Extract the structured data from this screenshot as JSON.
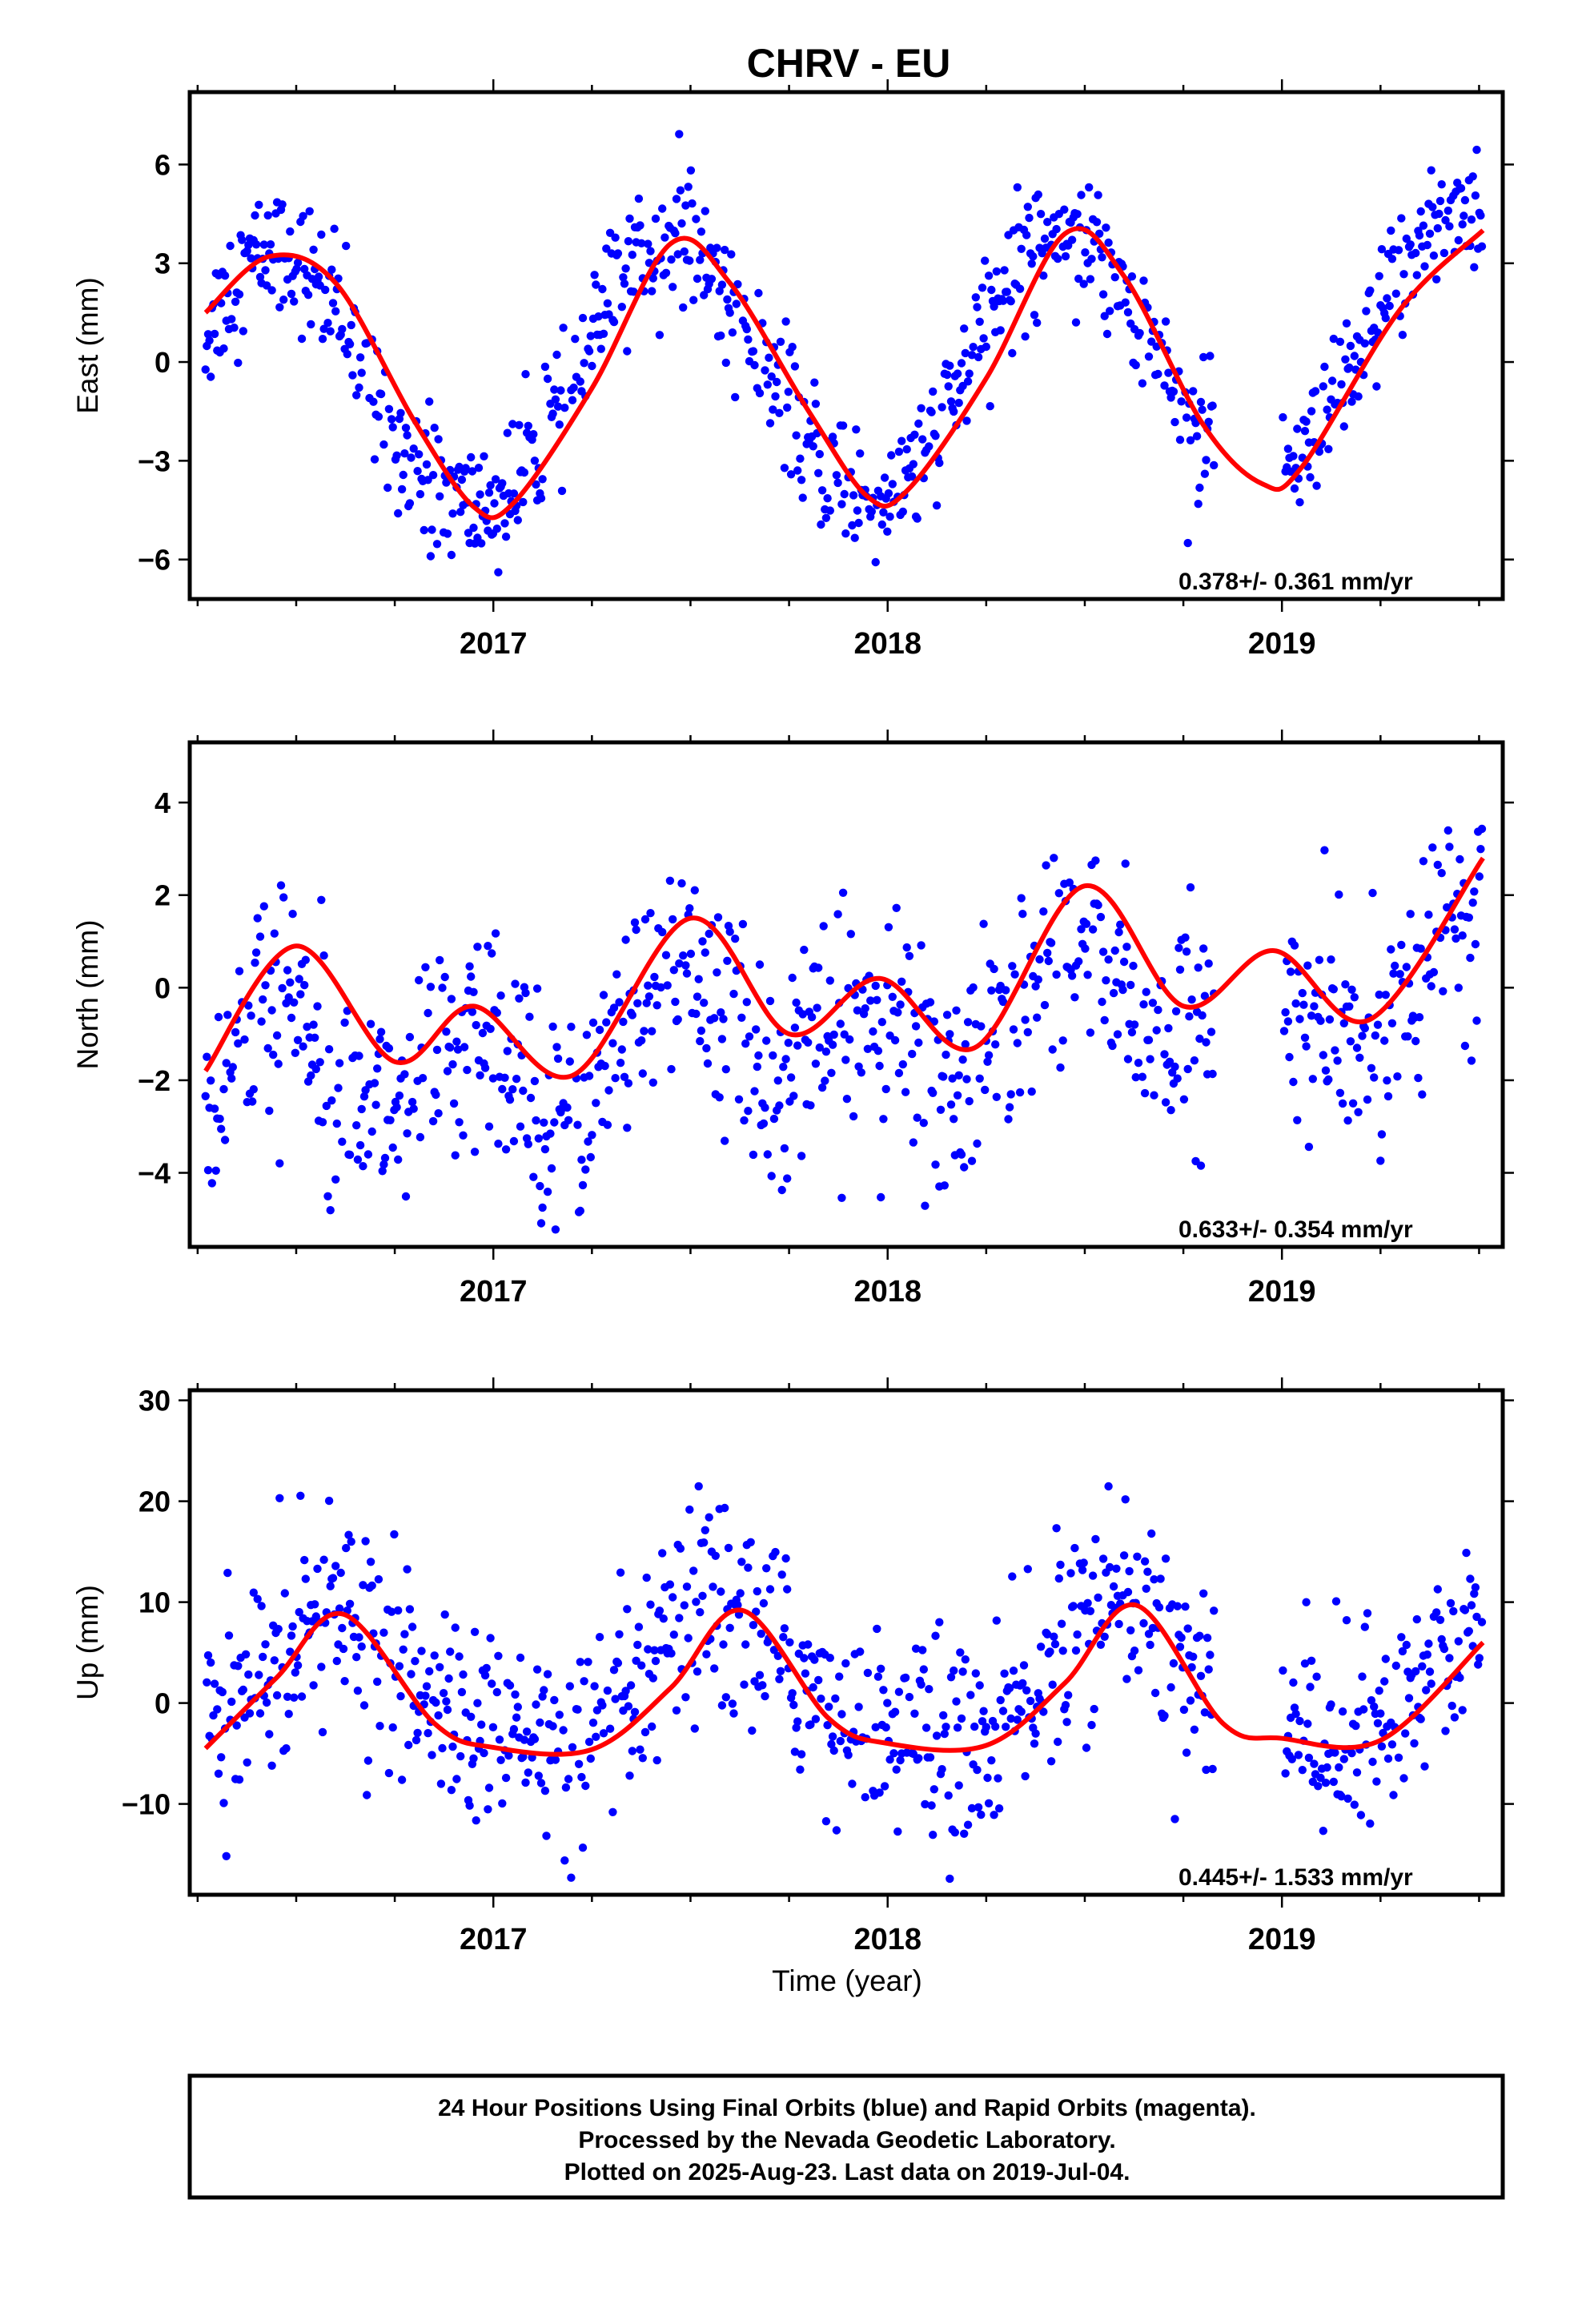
{
  "title": "CHRV - EU",
  "colors": {
    "final_orbits": "#0000ff",
    "fit": "#ff0000"
  },
  "xlabel": "Time (year)",
  "footer_lines": [
    "24 Hour Positions Using Final Orbits (blue) and Rapid Orbits (magenta).",
    "Processed by the Nevada Geodetic Laboratory.",
    "Plotted on 2025-Aug-23. Last data on 2019-Jul-04."
  ],
  "chart_data": [
    {
      "type": "scatter",
      "ylabel": "East (mm)",
      "xlim": [
        2016.23,
        2019.56
      ],
      "ylim": [
        -7.2,
        8.2
      ],
      "x_ticks": [
        2017,
        2018,
        2019
      ],
      "y_ticks": [
        -6,
        -3,
        0,
        3,
        6
      ],
      "y_tick_labels": [
        "−6",
        "−3",
        "0",
        "3",
        "6"
      ],
      "rate_label": "0.378+/- 0.361 mm/yr",
      "data_range": [
        2016.27,
        2019.51
      ],
      "gap": [
        2018.83,
        2019.0
      ],
      "model": {
        "offset": -0.2,
        "rate": 0.378,
        "annual": 4.0,
        "annual_peak": 2017.45,
        "semiannual": 0.2,
        "semi_phase": 0.5,
        "noise": 1.0
      },
      "fit_points": [
        [
          2016.27,
          1.5
        ],
        [
          2016.43,
          3.2
        ],
        [
          2016.6,
          2.4
        ],
        [
          2016.8,
          -1.8
        ],
        [
          2016.95,
          -4.4
        ],
        [
          2017.05,
          -4.3
        ],
        [
          2017.25,
          -0.8
        ],
        [
          2017.45,
          3.6
        ],
        [
          2017.6,
          2.4
        ],
        [
          2017.8,
          -1.5
        ],
        [
          2017.95,
          -4.1
        ],
        [
          2018.05,
          -3.9
        ],
        [
          2018.25,
          -0.5
        ],
        [
          2018.45,
          3.9
        ],
        [
          2018.6,
          2.6
        ],
        [
          2018.8,
          -1.9
        ],
        [
          2018.95,
          -3.7
        ],
        [
          2019.05,
          -3.2
        ],
        [
          2019.3,
          1.6
        ],
        [
          2019.51,
          4.0
        ]
      ]
    },
    {
      "type": "scatter",
      "ylabel": "North (mm)",
      "xlim": [
        2016.23,
        2019.56
      ],
      "ylim": [
        -5.6,
        5.3
      ],
      "x_ticks": [
        2017,
        2018,
        2019
      ],
      "y_ticks": [
        -4,
        -2,
        0,
        2,
        4
      ],
      "y_tick_labels": [
        "−4",
        "−2",
        "0",
        "2",
        "4"
      ],
      "rate_label": "0.633+/- 0.354 mm/yr",
      "data_range": [
        2016.27,
        2019.51
      ],
      "gap": [
        2018.83,
        2019.0
      ],
      "model": {
        "offset": -0.9,
        "rate": 0.633,
        "annual": 0.7,
        "annual_peak": 2017.5,
        "semiannual": 0.9,
        "semi_phase": 0.55,
        "noise": 1.2
      },
      "fit_points": [
        [
          2016.27,
          -1.8
        ],
        [
          2016.5,
          0.9
        ],
        [
          2016.75,
          -1.6
        ],
        [
          2016.95,
          -0.4
        ],
        [
          2017.2,
          -1.9
        ],
        [
          2017.5,
          1.5
        ],
        [
          2017.75,
          -1.0
        ],
        [
          2017.98,
          0.2
        ],
        [
          2018.22,
          -1.3
        ],
        [
          2018.5,
          2.2
        ],
        [
          2018.75,
          -0.4
        ],
        [
          2018.98,
          0.8
        ],
        [
          2019.22,
          -0.7
        ],
        [
          2019.51,
          2.8
        ]
      ]
    },
    {
      "type": "scatter",
      "ylabel": "Up (mm)",
      "xlim": [
        2016.23,
        2019.56
      ],
      "ylim": [
        -19,
        31
      ],
      "x_ticks": [
        2017,
        2018,
        2019
      ],
      "y_ticks": [
        -10,
        0,
        10,
        20,
        30
      ],
      "y_tick_labels": [
        "−10",
        "0",
        "10",
        "20",
        "30"
      ],
      "rate_label": "0.445+/- 1.533 mm/yr",
      "data_range": [
        2016.27,
        2019.51
      ],
      "gap": [
        2018.83,
        2019.0
      ],
      "model": {
        "offset": 1.5,
        "rate": 0.445,
        "annual": 6.5,
        "annual_peak": 2017.6,
        "semiannual": 1.5,
        "semi_phase": 0.6,
        "noise": 5.0
      },
      "fit_points": [
        [
          2016.27,
          -4.5
        ],
        [
          2016.45,
          2.5
        ],
        [
          2016.62,
          8.8
        ],
        [
          2016.85,
          -2.0
        ],
        [
          2017.0,
          -4.4
        ],
        [
          2017.25,
          -4.6
        ],
        [
          2017.45,
          1.5
        ],
        [
          2017.63,
          9.2
        ],
        [
          2017.85,
          -1.5
        ],
        [
          2018.0,
          -4.0
        ],
        [
          2018.25,
          -4.2
        ],
        [
          2018.45,
          2.0
        ],
        [
          2018.63,
          9.7
        ],
        [
          2018.85,
          -2.0
        ],
        [
          2019.0,
          -3.5
        ],
        [
          2019.25,
          -3.7
        ],
        [
          2019.51,
          6.0
        ]
      ]
    }
  ]
}
